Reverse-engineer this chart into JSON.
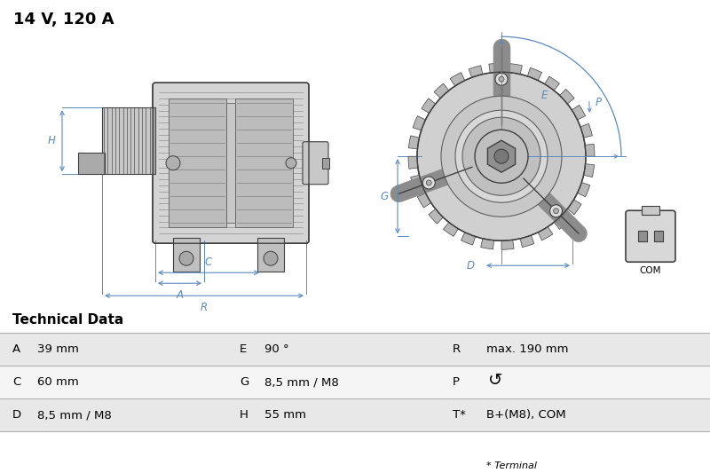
{
  "title": "14 V, 120 A",
  "title_fontsize": 13,
  "bg_color": "#ffffff",
  "table_header": "Technical Data",
  "table_rows": [
    [
      "A",
      "39 mm",
      "E",
      "90 °",
      "R",
      "max. 190 mm"
    ],
    [
      "C",
      "60 mm",
      "G",
      "8,5 mm / M8",
      "P",
      "↺"
    ],
    [
      "D",
      "8,5 mm / M8",
      "H",
      "55 mm",
      "T*",
      "B+(M8), COM"
    ]
  ],
  "footnote": "* Terminal",
  "dim_color": "#5b8abf",
  "part_color": "#404040",
  "part_color2": "#606060",
  "row_colors": [
    "#e8e8e8",
    "#f5f5f5",
    "#e8e8e8"
  ],
  "line_color": "#888888"
}
